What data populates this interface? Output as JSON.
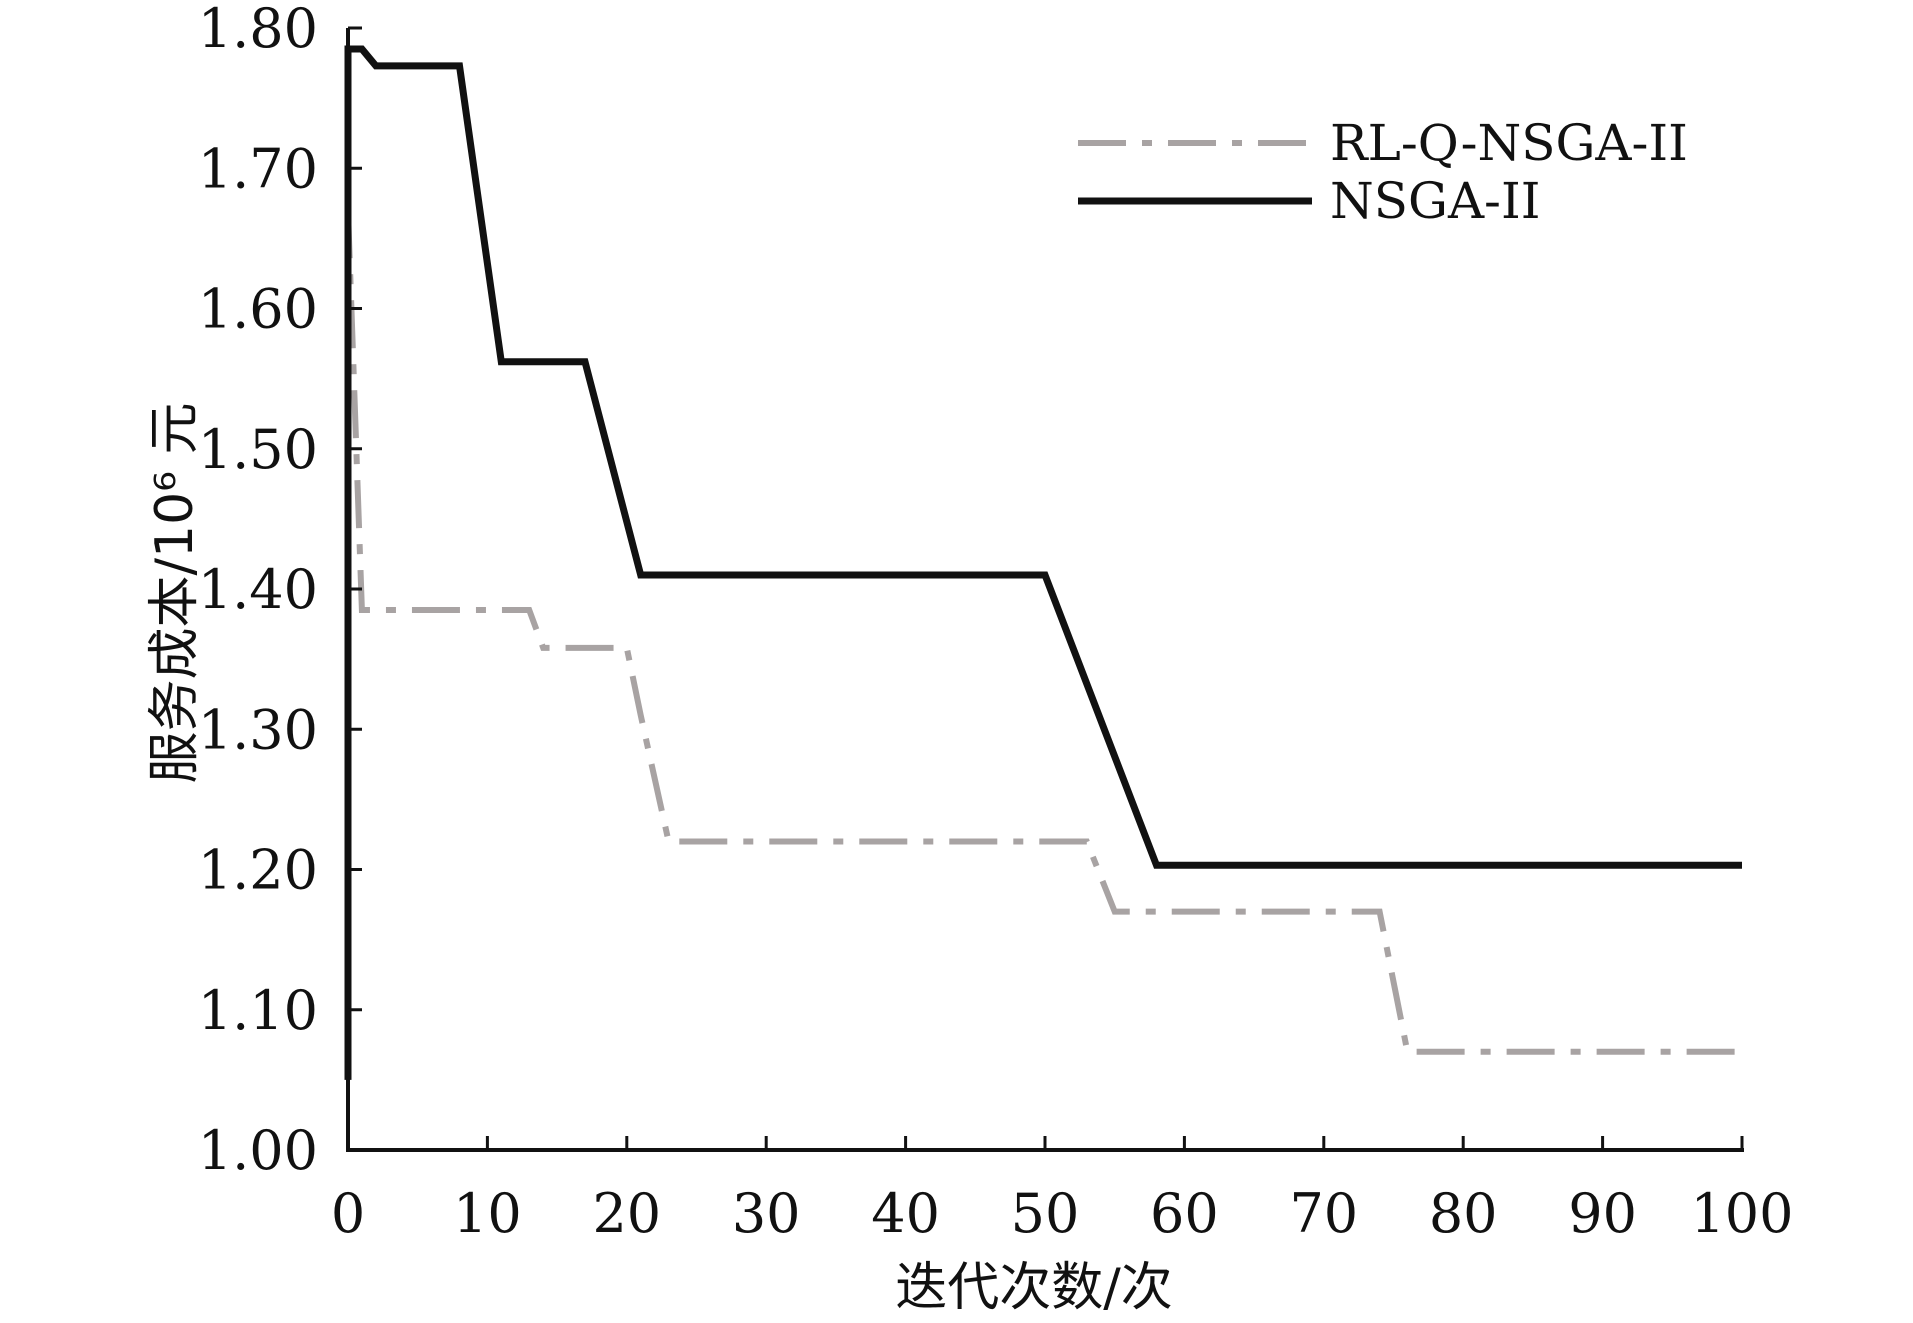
{
  "chart_data": {
    "type": "line",
    "title": "",
    "xlabel": "迭代次数/次",
    "ylabel": "服务成本/10⁶ 元",
    "xlim": [
      0,
      100
    ],
    "ylim": [
      1.0,
      1.8
    ],
    "xticks": [
      "0",
      "10",
      "20",
      "30",
      "40",
      "50",
      "60",
      "70",
      "80",
      "90",
      "100"
    ],
    "yticks": [
      "1.00",
      "1.10",
      "1.20",
      "1.30",
      "1.40",
      "1.50",
      "1.60",
      "1.70",
      "1.80"
    ],
    "grid": false,
    "legend_position": "top-right",
    "series": [
      {
        "name": "RL-Q-NSGA-II",
        "color": "#a8a3a3",
        "style": "dash-dot",
        "x": [
          0,
          1,
          13,
          14,
          20,
          21,
          23,
          53,
          55,
          74,
          76,
          100
        ],
        "y": [
          1.67,
          1.385,
          1.385,
          1.358,
          1.358,
          1.31,
          1.22,
          1.22,
          1.17,
          1.17,
          1.07,
          1.07
        ]
      },
      {
        "name": "NSGA-II",
        "color": "#111111",
        "style": "solid",
        "x": [
          0,
          0,
          1,
          2,
          8,
          11,
          17,
          21,
          50,
          58,
          100
        ],
        "y": [
          1.05,
          1.785,
          1.785,
          1.773,
          1.773,
          1.562,
          1.562,
          1.41,
          1.41,
          1.203,
          1.203
        ]
      }
    ]
  }
}
